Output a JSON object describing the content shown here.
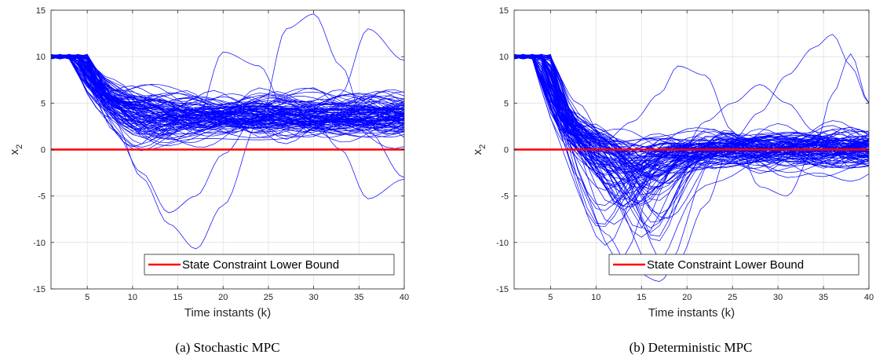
{
  "chart_data": [
    {
      "type": "line",
      "caption": "(a) Stochastic MPC",
      "xlabel": "Time instants (k)",
      "ylabel_main": "x",
      "ylabel_sub": "2",
      "xlim": [
        1,
        40
      ],
      "ylim": [
        -15,
        15
      ],
      "xticks": [
        5,
        10,
        15,
        20,
        25,
        30,
        35,
        40
      ],
      "yticks": [
        -15,
        -10,
        -5,
        0,
        5,
        10,
        15
      ],
      "grid": true,
      "legend_position": "bottom-right",
      "constraint": {
        "name": "State Constraint Lower Bound",
        "value": 0,
        "color": "#ff0000"
      },
      "trajectories": {
        "count": 100,
        "color": "#0000ff",
        "start_value": 10,
        "approx_mean_steady_state": 3.5,
        "approx_spread": [
          -1,
          8
        ],
        "extreme_examples": [
          {
            "x": [
              1,
              3,
              5,
              8,
              11,
              14,
              17,
              20,
              24,
              27,
              30,
              33,
              36,
              40
            ],
            "y": [
              10,
              10,
              8,
              3,
              -3,
              -8,
              -10.7,
              -6,
              3,
              13,
              14.6,
              9,
              2,
              -3
            ]
          },
          {
            "x": [
              1,
              3,
              5,
              8,
              11,
              14,
              17,
              20,
              24,
              27,
              30,
              33,
              36,
              40
            ],
            "y": [
              10,
              10,
              7,
              2,
              -2.5,
              -6.8,
              -5,
              -0.5,
              4,
              5,
              3,
              0,
              -5.3,
              -3.2
            ]
          },
          {
            "x": [
              1,
              3,
              5,
              8,
              11,
              14,
              17,
              20,
              24,
              27,
              30,
              33,
              36,
              40
            ],
            "y": [
              10,
              10,
              8,
              4,
              3,
              2,
              3,
              10.5,
              9,
              4,
              2,
              6,
              13,
              9.6
            ]
          }
        ]
      }
    },
    {
      "type": "line",
      "caption": "(b) Deterministic MPC",
      "xlabel": "Time instants (k)",
      "ylabel_main": "x",
      "ylabel_sub": "2",
      "xlim": [
        1,
        40
      ],
      "ylim": [
        -15,
        15
      ],
      "xticks": [
        5,
        10,
        15,
        20,
        25,
        30,
        35,
        40
      ],
      "yticks": [
        -15,
        -10,
        -5,
        0,
        5,
        10,
        15
      ],
      "grid": true,
      "legend_position": "bottom-right",
      "constraint": {
        "name": "State Constraint Lower Bound",
        "value": 0,
        "color": "#ff0000"
      },
      "trajectories": {
        "count": 100,
        "color": "#0000ff",
        "start_value": 10,
        "approx_mean_steady_state": 0,
        "approx_spread": [
          -4,
          4
        ],
        "extreme_examples": [
          {
            "x": [
              1,
              3,
              5,
              8,
              11,
              14,
              17,
              19,
              22,
              25,
              28,
              31,
              34,
              36,
              38,
              40
            ],
            "y": [
              10,
              10,
              6,
              -3,
              -9,
              -13,
              -14.2,
              -12,
              -6,
              1,
              4,
              8,
              11,
              12.4,
              9,
              5
            ]
          },
          {
            "x": [
              1,
              3,
              5,
              8,
              11,
              14,
              17,
              19,
              22,
              25,
              28,
              31,
              34,
              36,
              38,
              40
            ],
            "y": [
              10,
              10,
              8,
              3,
              -2,
              -6,
              -4,
              -1,
              3,
              5,
              7,
              5,
              2,
              0,
              -2,
              -1
            ]
          },
          {
            "x": [
              1,
              3,
              5,
              8,
              11,
              14,
              17,
              19,
              22,
              25,
              28,
              31,
              34,
              36,
              38,
              40
            ],
            "y": [
              10,
              10,
              9,
              5,
              1,
              3,
              6,
              9,
              8,
              2,
              -4,
              -5,
              0,
              6,
              10.3,
              5
            ]
          }
        ]
      }
    }
  ]
}
